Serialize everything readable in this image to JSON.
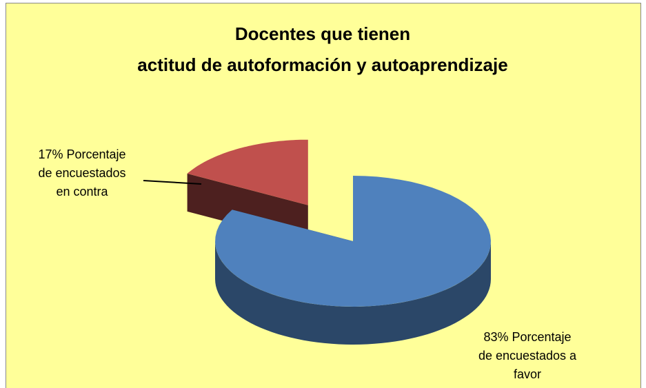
{
  "chart_data": {
    "type": "pie3d",
    "title": [
      "Docentes que tienen",
      "actitud de autoformación y autoaprendizaje"
    ],
    "categories": [
      "Porcentaje de encuestados a favor",
      "Porcentaje de encuestados en contra"
    ],
    "values": [
      83,
      17
    ],
    "value_labels": [
      "83%",
      "17%"
    ],
    "colors": [
      "#4f81bd",
      "#c0504d"
    ]
  }
}
